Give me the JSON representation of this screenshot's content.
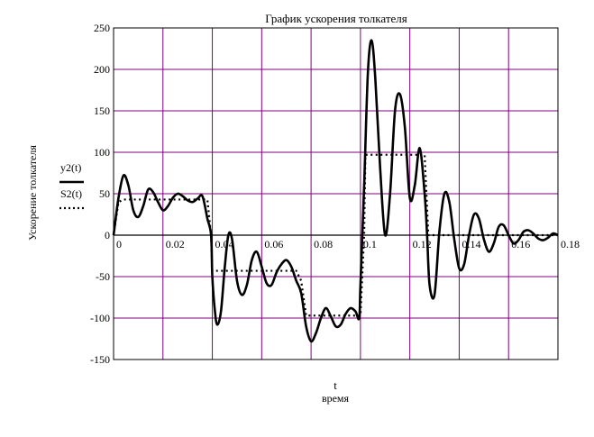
{
  "chart_data": {
    "type": "line",
    "title": "График ускорения толкателя",
    "xlabel": "t",
    "xlabel_sub": "время",
    "ylabel": "Ускорение толкателя",
    "xlim": [
      0,
      0.18
    ],
    "ylim": [
      -150,
      250
    ],
    "x_ticks": [
      0,
      0.02,
      0.04,
      0.06,
      0.08,
      0.1,
      0.12,
      0.14,
      0.16,
      0.18
    ],
    "x_tick_labels": [
      "0",
      "0.02",
      "0.04",
      "0.06",
      "0.08",
      "0.1",
      "0.12",
      "0.14",
      "0.16",
      "0.18"
    ],
    "y_ticks": [
      -150,
      -100,
      -50,
      0,
      50,
      100,
      150,
      200,
      250
    ],
    "y_tick_labels": [
      "-150",
      "-100",
      "-50",
      "0",
      "50",
      "100",
      "150",
      "200",
      "250"
    ],
    "grid": true,
    "grid_color": "#800080",
    "legend_position": "left",
    "series": [
      {
        "name": "y2(t)",
        "style": "solid",
        "color": "#000000",
        "x": [
          0,
          0.002,
          0.004,
          0.006,
          0.008,
          0.01,
          0.012,
          0.014,
          0.016,
          0.018,
          0.02,
          0.022,
          0.024,
          0.026,
          0.028,
          0.03,
          0.032,
          0.034,
          0.036,
          0.038,
          0.0395,
          0.04,
          0.041,
          0.042,
          0.0435,
          0.045,
          0.0465,
          0.048,
          0.05,
          0.052,
          0.054,
          0.056,
          0.058,
          0.06,
          0.062,
          0.064,
          0.066,
          0.068,
          0.07,
          0.072,
          0.074,
          0.076,
          0.078,
          0.08,
          0.082,
          0.084,
          0.086,
          0.088,
          0.09,
          0.092,
          0.094,
          0.096,
          0.098,
          0.0995,
          0.1,
          0.1015,
          0.103,
          0.1045,
          0.106,
          0.108,
          0.11,
          0.112,
          0.114,
          0.116,
          0.118,
          0.12,
          0.122,
          0.124,
          0.126,
          0.127,
          0.128,
          0.13,
          0.132,
          0.134,
          0.136,
          0.138,
          0.14,
          0.142,
          0.144,
          0.146,
          0.148,
          0.15,
          0.152,
          0.154,
          0.156,
          0.158,
          0.16,
          0.162,
          0.164,
          0.166,
          0.168,
          0.17,
          0.172,
          0.174,
          0.176,
          0.178,
          0.18
        ],
        "values": [
          0,
          45,
          72,
          60,
          30,
          22,
          35,
          55,
          52,
          40,
          30,
          35,
          45,
          50,
          47,
          42,
          40,
          44,
          47,
          20,
          0,
          -50,
          -90,
          -108,
          -92,
          -40,
          0,
          -5,
          -55,
          -72,
          -60,
          -30,
          -20,
          -38,
          -58,
          -60,
          -45,
          -35,
          -30,
          -38,
          -55,
          -70,
          -110,
          -128,
          -118,
          -100,
          -88,
          -98,
          -110,
          -108,
          -95,
          -88,
          -92,
          -100,
          -60,
          60,
          195,
          235,
          190,
          80,
          0,
          50,
          150,
          170,
          130,
          45,
          60,
          105,
          50,
          0,
          -60,
          -72,
          5,
          50,
          40,
          -5,
          -40,
          -35,
          0,
          25,
          20,
          -5,
          -20,
          -10,
          10,
          12,
          0,
          -10,
          -6,
          4,
          6,
          2,
          -4,
          -6,
          -3,
          2,
          0
        ]
      },
      {
        "name": "S2(t)",
        "style": "dotted",
        "color": "#000000",
        "x": [
          0,
          0.002,
          0.004,
          0.038,
          0.0395,
          0.04,
          0.074,
          0.076,
          0.078,
          0.1,
          0.1015,
          0.102,
          0.126,
          0.1275,
          0.128,
          0.18
        ],
        "values": [
          0,
          40,
          43,
          43,
          0,
          -43,
          -43,
          -55,
          -97,
          -97,
          0,
          97,
          97,
          0,
          0,
          0
        ]
      }
    ]
  }
}
